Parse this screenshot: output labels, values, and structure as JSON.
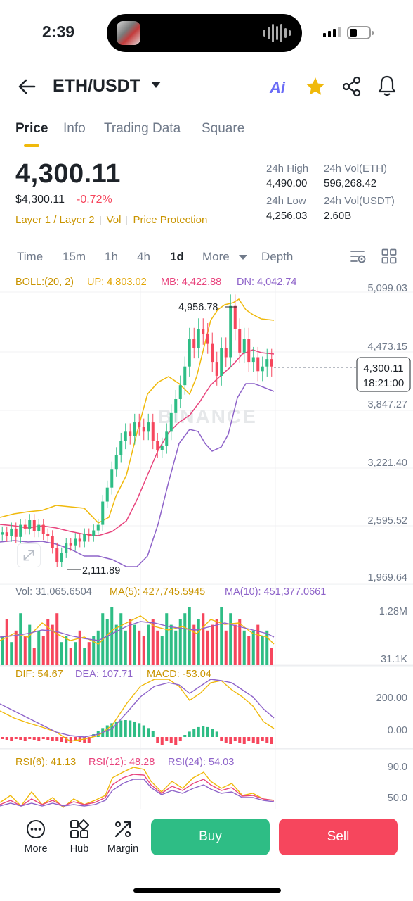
{
  "status_bar": {
    "time": "2:39"
  },
  "header": {
    "pair": "ETH/USDT",
    "ai_label": "Ai"
  },
  "tabs": [
    {
      "label": "Price",
      "active": true
    },
    {
      "label": "Info"
    },
    {
      "label": "Trading Data"
    },
    {
      "label": "Square"
    }
  ],
  "price": {
    "last": "4,300.11",
    "fiat": "$4,300.11",
    "change": "-0.72%",
    "tags": [
      "Layer 1 / Layer 2",
      "Vol",
      "Price Protection"
    ]
  },
  "stats": {
    "high_label": "24h High",
    "high": "4,490.00",
    "vol_eth_label": "24h Vol(ETH)",
    "vol_eth": "596,268.42",
    "low_label": "24h Low",
    "low": "4,256.03",
    "vol_usdt_label": "24h Vol(USDT)",
    "vol_usdt": "2.60B"
  },
  "intervals": [
    "Time",
    "15m",
    "1h",
    "4h",
    "1d",
    "More",
    "Depth"
  ],
  "active_interval": "1d",
  "indicators": {
    "boll": {
      "label": "BOLL:(20, 2)",
      "up": "UP: 4,803.02",
      "mb": "MB: 4,422.88",
      "dn": "DN: 4,042.74"
    },
    "vol": {
      "label": "Vol: 31,065.6504",
      "ma5": "MA(5): 427,745.5945",
      "ma10": "MA(10): 451,377.0661"
    },
    "macd": {
      "dif": "DIF: 54.67",
      "dea": "DEA: 107.71",
      "macd": "MACD: -53.04"
    },
    "rsi": {
      "rsi6": "RSI(6): 41.13",
      "rsi12": "RSI(12): 48.28",
      "rsi24": "RSI(24): 54.03"
    }
  },
  "chart_data": {
    "type": "candlestick",
    "price_axis_ticks": [
      "5,099.03",
      "4,473.15",
      "3,847.27",
      "3,221.40",
      "2,595.52",
      "1,969.64"
    ],
    "ylim": [
      1969.64,
      5099.03
    ],
    "high_marker": "4,956.78",
    "low_marker": "2,111.89",
    "current_price": "4,300.11",
    "countdown": "18:21:00",
    "watermark": "BINANCE",
    "vol_axis_ticks": [
      "1.28M",
      "31.1K"
    ],
    "macd_axis_ticks": [
      "200.00",
      "0.00"
    ],
    "rsi_axis_ticks": [
      "90.0",
      "50.0"
    ],
    "colors": {
      "up": "#2ebd85",
      "down": "#f6465d",
      "boll_up": "#f0b90b",
      "boll_mb": "#e8447d",
      "boll_dn": "#8e63c9"
    },
    "closes": [
      2520,
      2480,
      2560,
      2470,
      2600,
      2560,
      2650,
      2530,
      2600,
      2500,
      2480,
      2350,
      2200,
      2300,
      2400,
      2380,
      2450,
      2420,
      2500,
      2480,
      2540,
      2600,
      2850,
      3000,
      3200,
      3350,
      3500,
      3600,
      3550,
      3700,
      3650,
      3600,
      3700,
      3500,
      3400,
      3450,
      3600,
      3800,
      3950,
      4100,
      4300,
      4600,
      4500,
      4700,
      4650,
      4550,
      4350,
      4200,
      4500,
      4400,
      4950,
      4700,
      4450,
      4600,
      4350,
      4400,
      4250,
      4300,
      4380,
      4300
    ],
    "volumes": [
      0.5,
      0.8,
      0.4,
      0.6,
      0.9,
      0.5,
      0.7,
      0.3,
      0.6,
      0.5,
      0.8,
      0.7,
      0.9,
      0.4,
      0.5,
      0.3,
      0.4,
      0.6,
      0.3,
      0.4,
      0.5,
      0.6,
      0.9,
      0.8,
      1.0,
      0.7,
      0.9,
      0.6,
      0.8,
      0.7,
      0.6,
      0.5,
      0.7,
      0.8,
      0.6,
      0.5,
      0.9,
      0.7,
      0.6,
      0.8,
      0.9,
      1.0,
      0.7,
      0.8,
      0.9,
      0.6,
      0.7,
      0.8,
      1.0,
      0.6,
      0.9,
      0.7,
      0.8,
      0.6,
      0.5,
      0.6,
      0.7,
      0.5,
      0.6,
      0.3
    ]
  },
  "bottom_bar": {
    "more_label": "More",
    "hub_label": "Hub",
    "margin_label": "Margin",
    "buy_label": "Buy",
    "sell_label": "Sell"
  }
}
